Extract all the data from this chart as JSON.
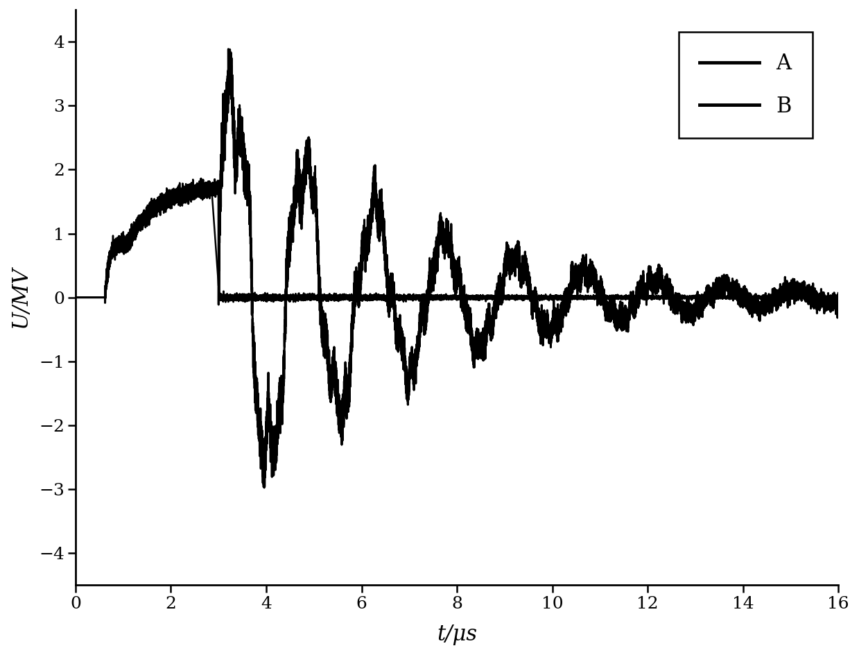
{
  "xlabel": "t/μs",
  "ylabel": "U/MV",
  "xlim": [
    0,
    16
  ],
  "ylim": [
    -4.5,
    4.5
  ],
  "xticks": [
    0,
    2,
    4,
    6,
    8,
    10,
    12,
    14,
    16
  ],
  "yticks": [
    -4,
    -3,
    -2,
    -1,
    0,
    1,
    2,
    3,
    4
  ],
  "legend_labels": [
    "A",
    "B"
  ],
  "line_color": "#000000",
  "background_color": "#ffffff",
  "figsize": [
    12.39,
    9.44
  ],
  "dpi": 100,
  "linewidth_A": 1.8,
  "linewidth_B": 2.2,
  "label_fontsize": 22,
  "tick_fontsize": 18,
  "legend_fontsize": 22
}
